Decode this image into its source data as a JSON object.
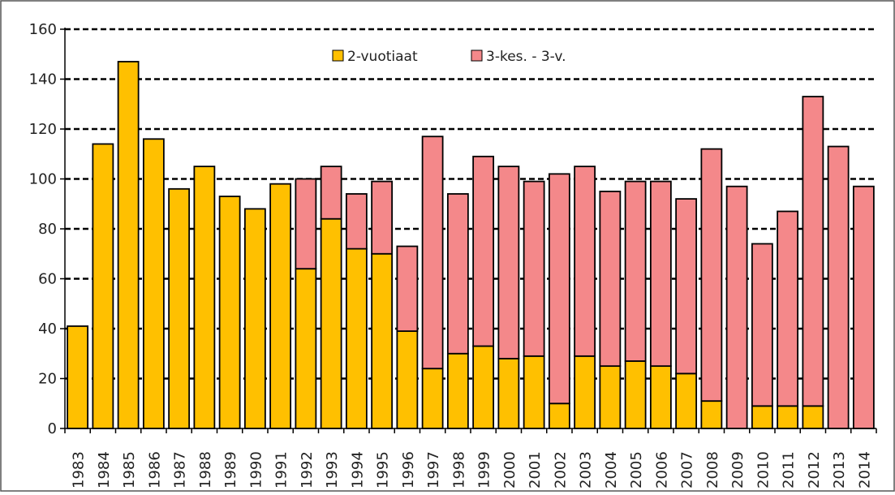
{
  "chart_data": {
    "type": "bar",
    "stacked": true,
    "categories": [
      "1983",
      "1984",
      "1985",
      "1986",
      "1987",
      "1988",
      "1989",
      "1990",
      "1991",
      "1992",
      "1993",
      "1994",
      "1995",
      "1996",
      "1997",
      "1998",
      "1999",
      "2000",
      "2001",
      "2002",
      "2003",
      "2004",
      "2005",
      "2006",
      "2007",
      "2008",
      "2009",
      "2010",
      "2011",
      "2012",
      "2013",
      "2014"
    ],
    "series": [
      {
        "name": "2-vuotiaat",
        "color": "#FFC000",
        "values": [
          41,
          114,
          147,
          116,
          96,
          105,
          93,
          88,
          98,
          64,
          84,
          72,
          70,
          39,
          24,
          30,
          33,
          28,
          29,
          10,
          29,
          25,
          27,
          25,
          22,
          11,
          0,
          9,
          9,
          9,
          0,
          0
        ]
      },
      {
        "name": "3-kes. - 3-v.",
        "color": "#F4888A",
        "values": [
          0,
          0,
          0,
          0,
          0,
          0,
          0,
          0,
          0,
          36,
          21,
          22,
          29,
          34,
          93,
          64,
          76,
          77,
          70,
          92,
          76,
          70,
          72,
          74,
          70,
          101,
          97,
          65,
          78,
          124,
          113,
          97
        ]
      }
    ],
    "ylim": [
      0,
      160
    ],
    "yticks": [
      "0",
      "20",
      "40",
      "60",
      "80",
      "100",
      "120",
      "140",
      "160"
    ],
    "grid": true,
    "legend": "top-center"
  }
}
